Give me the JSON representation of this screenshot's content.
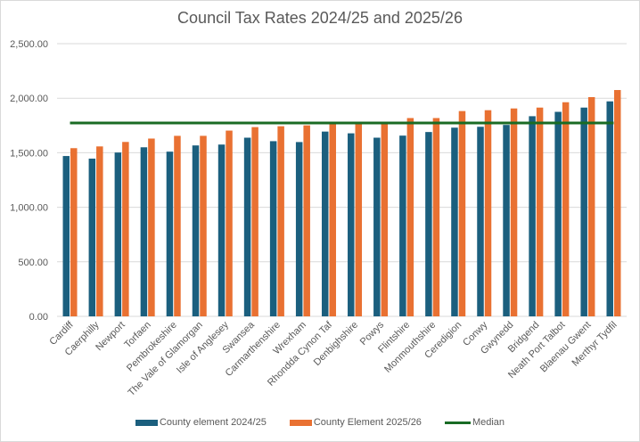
{
  "chart_data": {
    "type": "bar",
    "title": "Council Tax Rates 2024/25 and 2025/26",
    "xlabel": "",
    "ylabel": "",
    "ylim": [
      0,
      2500
    ],
    "yticks": [
      0,
      500,
      1000,
      1500,
      2000,
      2500
    ],
    "ytick_labels": [
      "0.00",
      "500.00",
      "1,000.00",
      "1,500.00",
      "2,000.00",
      "2,500.00"
    ],
    "grid": true,
    "legend_position": "bottom",
    "categories": [
      "Cardiff",
      "Caerphilly",
      "Newport",
      "Torfaen",
      "Pembrokeshire",
      "The Vale of Glamorgan",
      "Isle of Anglesey",
      "Swansea",
      "Carmarthenshire",
      "Wrexham",
      "Rhondda Cynon Taf",
      "Denbighshire",
      "Powys",
      "Flintshire",
      "Monmouthshire",
      "Ceredigion",
      "Conwy",
      "Gwynedd",
      "Bridgend",
      "Neath Port Talbot",
      "Blaenau Gwent",
      "Merthyr Tydfil"
    ],
    "series": [
      {
        "name": "County element 2024/25",
        "type": "bar",
        "color": "#1b5f7e",
        "values": [
          1470,
          1446,
          1502,
          1550,
          1510,
          1567,
          1575,
          1638,
          1606,
          1598,
          1694,
          1678,
          1638,
          1657,
          1690,
          1730,
          1738,
          1755,
          1835,
          1875,
          1914,
          1971
        ]
      },
      {
        "name": "County Element 2025/26",
        "type": "bar",
        "color": "#e97132",
        "values": [
          1542,
          1558,
          1599,
          1630,
          1655,
          1655,
          1703,
          1735,
          1743,
          1751,
          1776,
          1780,
          1778,
          1818,
          1818,
          1882,
          1890,
          1906,
          1914,
          1963,
          2010,
          2075
        ]
      },
      {
        "name": "Median",
        "type": "line",
        "color": "#196b24",
        "value": 1773
      }
    ]
  }
}
